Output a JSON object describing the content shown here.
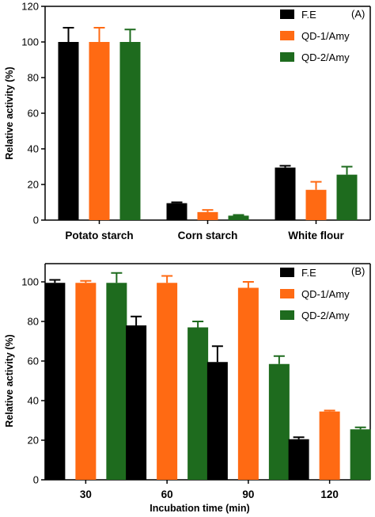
{
  "chart_data": [
    {
      "type": "bar",
      "panel_label": "(A)",
      "ylabel": "Relative  activity (%)",
      "xlabel": "",
      "ylim": [
        0,
        120
      ],
      "yticks": [
        0,
        20,
        40,
        60,
        80,
        100,
        120
      ],
      "categories": [
        "Potato starch",
        "Corn starch",
        "White flour"
      ],
      "legend_position": "top-right",
      "grid": false,
      "series": [
        {
          "name": "F.E",
          "color": "#000000",
          "values": [
            100,
            9.5,
            29.5
          ],
          "errors": [
            8,
            0.5,
            1
          ]
        },
        {
          "name": "QD-1/Amy",
          "color": "#ff6a13",
          "values": [
            100,
            4.5,
            17
          ],
          "errors": [
            8,
            1.2,
            4.5
          ]
        },
        {
          "name": "QD-2/Amy",
          "color": "#1e6b1e",
          "values": [
            100,
            2.5,
            25.5
          ],
          "errors": [
            7,
            0.4,
            4.5
          ]
        }
      ]
    },
    {
      "type": "bar",
      "panel_label": "(B)",
      "ylabel": "Relative  activity (%)",
      "xlabel": "Incubation time (min)",
      "ylim": [
        0,
        100
      ],
      "yticks": [
        0,
        20,
        40,
        60,
        80,
        100
      ],
      "categories": [
        "30",
        "60",
        "90",
        "120"
      ],
      "legend_position": "top-right",
      "grid": false,
      "series": [
        {
          "name": "F.E",
          "color": "#000000",
          "values": [
            99.5,
            78,
            59.5,
            20.5
          ],
          "errors": [
            1.5,
            4.5,
            8,
            1
          ]
        },
        {
          "name": "QD-1/Amy",
          "color": "#ff6a13",
          "values": [
            99.5,
            99.5,
            97,
            34.5
          ],
          "errors": [
            1,
            3.5,
            3,
            0.5
          ]
        },
        {
          "name": "QD-2/Amy",
          "color": "#1e6b1e",
          "values": [
            99.5,
            77,
            58.5,
            25.5
          ],
          "errors": [
            5,
            3,
            4,
            1
          ]
        }
      ]
    }
  ]
}
